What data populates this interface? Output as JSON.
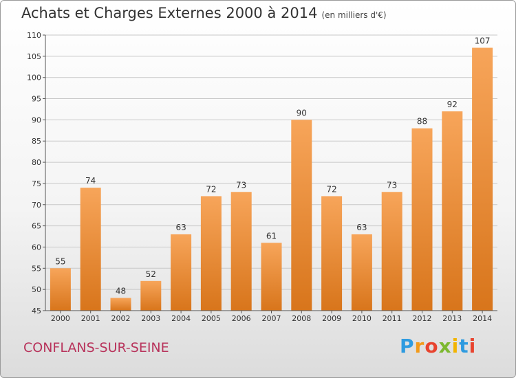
{
  "title": "Achats et Charges Externes 2000 à 2014",
  "unit": "(en milliers d'€)",
  "city": "CONFLANS-SUR-SEINE",
  "logo": {
    "text": "Proxiti",
    "colors": [
      "#2e9be0",
      "#f29a1a",
      "#e8432e",
      "#7cb82f",
      "#f2b400",
      "#2e9be0",
      "#e8432e"
    ]
  },
  "bar_color_top": "#f7a55a",
  "bar_color_bottom": "#d8751b",
  "chart_data": {
    "type": "bar",
    "categories": [
      "2000",
      "2001",
      "2002",
      "2003",
      "2004",
      "2005",
      "2006",
      "2007",
      "2008",
      "2009",
      "2010",
      "2011",
      "2012",
      "2013",
      "2014"
    ],
    "values": [
      55,
      74,
      48,
      52,
      63,
      72,
      73,
      61,
      90,
      72,
      63,
      73,
      88,
      92,
      107
    ],
    "ylim": [
      45,
      110
    ],
    "yticks": [
      45,
      50,
      55,
      60,
      65,
      70,
      75,
      80,
      85,
      90,
      95,
      100,
      105,
      110
    ],
    "grid": true
  }
}
